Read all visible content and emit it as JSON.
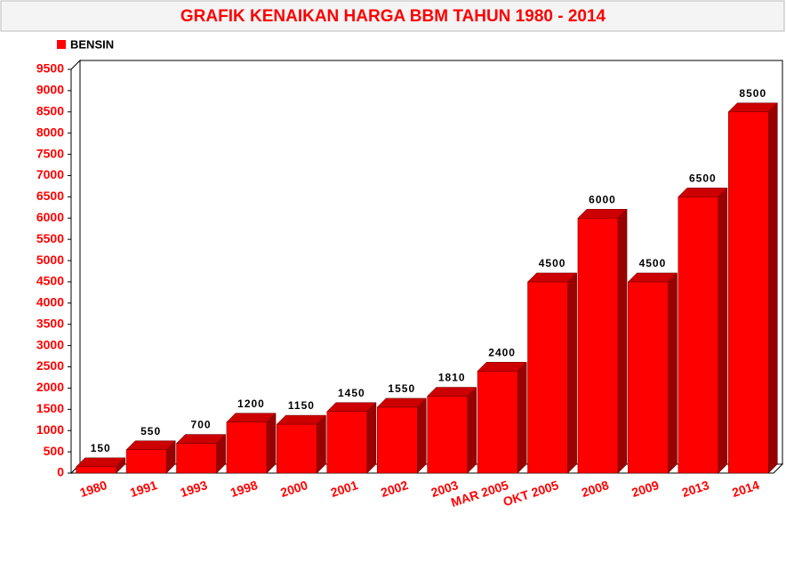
{
  "chart_data": {
    "type": "bar3d",
    "title": "GRAFIK KENAIKAN HARGA BBM TAHUN 1980 - 2014",
    "categories": [
      "1980",
      "1991",
      "1993",
      "1998",
      "2000",
      "2001",
      "2002",
      "2003",
      "MAR 2005",
      "OKT 2005",
      "2008",
      "2009",
      "2013",
      "2014"
    ],
    "series": [
      {
        "name": "BENSIN",
        "color": "#ff0000",
        "values": [
          150,
          550,
          700,
          1200,
          1150,
          1450,
          1550,
          1810,
          2400,
          4500,
          6000,
          4500,
          6500,
          8500
        ]
      }
    ],
    "ylim": [
      0,
      9500
    ],
    "yticks": [
      0,
      500,
      1000,
      1500,
      2000,
      2500,
      3000,
      3500,
      4000,
      4500,
      5000,
      5500,
      6000,
      6500,
      7000,
      7500,
      8000,
      8500,
      9000,
      9500
    ],
    "grid": false
  }
}
